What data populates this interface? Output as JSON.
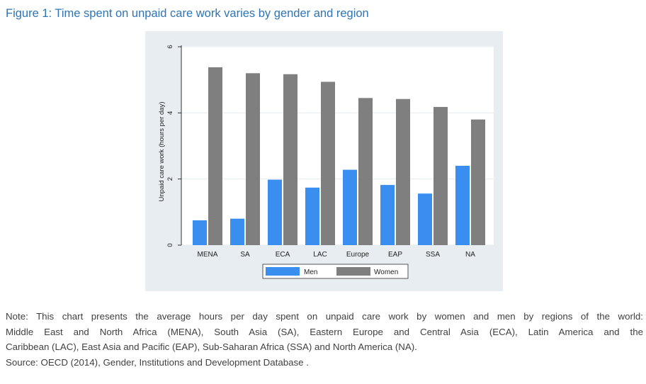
{
  "figure_title": "Figure 1: Time spent on unpaid care work varies by gender and region",
  "note_lines": [
    "Note: This chart presents the average hours per day spent on unpaid care work by women and men by regions of the world:",
    "Middle East and North Africa (MENA), South Asia (SA), Eastern Europe and Central Asia (ECA), Latin America and the",
    "Caribbean (LAC), East Asia and Pacific (EAP), Sub-Saharan Africa (SSA) and North America (NA)."
  ],
  "source_line": "Source: OECD (2014), Gender, Institutions and Development Database .",
  "chart_data": {
    "type": "bar",
    "title": "",
    "xlabel": "",
    "ylabel": "Unpaid care work (hours per day)",
    "categories": [
      "MENA",
      "SA",
      "ECA",
      "LAC",
      "Europe",
      "EAP",
      "SSA",
      "NA"
    ],
    "series": [
      {
        "name": "Men",
        "color": "#3a8ef0",
        "values": [
          0.75,
          0.8,
          1.98,
          1.74,
          2.28,
          1.82,
          1.56,
          2.4
        ]
      },
      {
        "name": "Women",
        "color": "#7f7f7f",
        "values": [
          5.38,
          5.2,
          5.17,
          4.94,
          4.45,
          4.42,
          4.18,
          3.8
        ]
      }
    ],
    "ylim": [
      0,
      6
    ],
    "yticks": [
      0,
      2,
      4,
      6
    ],
    "grid": true,
    "legend_position": "bottom"
  }
}
